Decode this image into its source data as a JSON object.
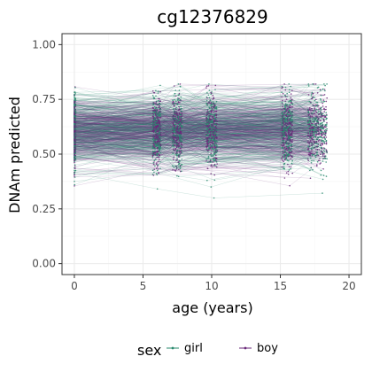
{
  "colors": {
    "girl": "#2a8a6e",
    "boy": "#6a2a7a",
    "grid_major": "#ebebeb",
    "grid_minor": "#f5f5f5",
    "panel_border": "#333333"
  },
  "chart_data": {
    "type": "line",
    "title": "cg12376829",
    "xlabel": "age (years)",
    "ylabel": "DNAm predicted",
    "xlim": [
      -0.9,
      20.9
    ],
    "ylim": [
      -0.05,
      1.05
    ],
    "x_ticks": [
      0,
      5,
      10,
      15,
      20
    ],
    "x_tick_labels": [
      "0",
      "5",
      "10",
      "15",
      "20"
    ],
    "y_ticks": [
      0.0,
      0.25,
      0.5,
      0.75,
      1.0
    ],
    "y_tick_labels": [
      "0.00",
      "0.25",
      "0.50",
      "0.75",
      "1.00"
    ],
    "grid": true,
    "legend_position": "bottom",
    "legend_title": "sex",
    "series": [
      {
        "name": "girl",
        "color": "#2a8a6e"
      },
      {
        "name": "boy",
        "color": "#6a2a7a"
      }
    ],
    "visit_ages": [
      0,
      6,
      7.5,
      10,
      15.5,
      17.7
    ],
    "visit_spread": [
      0.1,
      0.3,
      0.35,
      0.4,
      0.4,
      0.7
    ],
    "distribution": {
      "mean": 0.6,
      "sd": 0.075,
      "min": 0.3,
      "max": 0.85
    }
  }
}
